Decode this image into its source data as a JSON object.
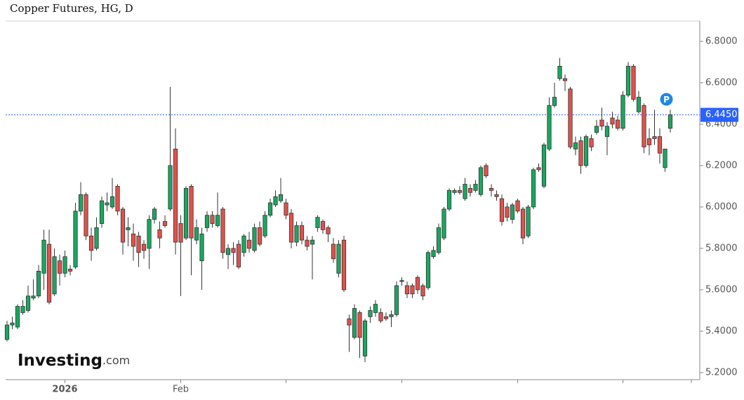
{
  "chart_data": {
    "type": "candlestick",
    "title": "Copper Futures, HG, D",
    "up_color": "#1aa760",
    "down_color": "#e0524d",
    "candles": [
      [
        5.36,
        5.45,
        5.35,
        5.43
      ],
      [
        5.43,
        5.47,
        5.41,
        5.44
      ],
      [
        5.42,
        5.53,
        5.41,
        5.52
      ],
      [
        5.49,
        5.55,
        5.48,
        5.52
      ],
      [
        5.5,
        5.62,
        5.49,
        5.57
      ],
      [
        5.56,
        5.65,
        5.55,
        5.57
      ],
      [
        5.57,
        5.72,
        5.56,
        5.69
      ],
      [
        5.68,
        5.89,
        5.6,
        5.84
      ],
      [
        5.82,
        5.89,
        5.53,
        5.54
      ],
      [
        5.58,
        5.8,
        5.57,
        5.76
      ],
      [
        5.74,
        5.77,
        5.62,
        5.68
      ],
      [
        5.68,
        5.79,
        5.66,
        5.76
      ],
      [
        5.7,
        5.72,
        5.67,
        5.69
      ],
      [
        5.71,
        6.02,
        5.7,
        5.98
      ],
      [
        5.98,
        6.12,
        5.96,
        6.06
      ],
      [
        6.06,
        6.07,
        5.84,
        5.86
      ],
      [
        5.86,
        5.9,
        5.74,
        5.79
      ],
      [
        5.8,
        5.95,
        5.79,
        5.9
      ],
      [
        5.92,
        6.05,
        5.9,
        6.03
      ],
      [
        6.01,
        6.07,
        5.98,
        6.02
      ],
      [
        6.0,
        6.14,
        5.99,
        6.05
      ],
      [
        6.1,
        6.11,
        5.96,
        5.98
      ],
      [
        5.99,
        6.0,
        5.77,
        5.83
      ],
      [
        5.89,
        5.95,
        5.81,
        5.9
      ],
      [
        5.87,
        5.92,
        5.74,
        5.81
      ],
      [
        5.86,
        5.88,
        5.71,
        5.78
      ],
      [
        5.82,
        5.84,
        5.75,
        5.79
      ],
      [
        5.8,
        5.96,
        5.7,
        5.94
      ],
      [
        5.94,
        6.0,
        5.92,
        5.99
      ],
      [
        5.89,
        5.93,
        5.8,
        5.85
      ],
      [
        5.93,
        5.96,
        5.9,
        5.91
      ],
      [
        5.99,
        6.58,
        5.98,
        6.2
      ],
      [
        6.28,
        6.38,
        5.77,
        5.83
      ],
      [
        5.92,
        5.96,
        5.57,
        5.83
      ],
      [
        5.85,
        6.1,
        5.84,
        6.09
      ],
      [
        6.1,
        6.11,
        5.67,
        5.85
      ],
      [
        5.84,
        5.94,
        5.82,
        5.9
      ],
      [
        5.74,
        5.9,
        5.6,
        5.87
      ],
      [
        5.9,
        5.98,
        5.88,
        5.96
      ],
      [
        5.96,
        5.98,
        5.9,
        5.92
      ],
      [
        5.91,
        6.07,
        5.9,
        5.96
      ],
      [
        5.99,
        6.0,
        5.75,
        5.78
      ],
      [
        5.77,
        5.82,
        5.7,
        5.8
      ],
      [
        5.8,
        5.83,
        5.72,
        5.78
      ],
      [
        5.82,
        5.84,
        5.7,
        5.71
      ],
      [
        5.78,
        5.87,
        5.76,
        5.86
      ],
      [
        5.84,
        5.88,
        5.78,
        5.8
      ],
      [
        5.79,
        5.92,
        5.78,
        5.9
      ],
      [
        5.9,
        5.93,
        5.81,
        5.82
      ],
      [
        5.86,
        5.98,
        5.85,
        5.96
      ],
      [
        5.96,
        6.04,
        5.95,
        6.02
      ],
      [
        6.01,
        6.08,
        6.0,
        6.05
      ],
      [
        6.03,
        6.14,
        6.02,
        6.06
      ],
      [
        6.02,
        6.04,
        5.94,
        5.96
      ],
      [
        5.97,
        5.99,
        5.8,
        5.83
      ],
      [
        5.83,
        5.93,
        5.81,
        5.91
      ],
      [
        5.91,
        5.93,
        5.82,
        5.84
      ],
      [
        5.84,
        5.86,
        5.79,
        5.81
      ],
      [
        5.82,
        5.86,
        5.65,
        5.84
      ],
      [
        5.9,
        5.96,
        5.88,
        5.95
      ],
      [
        5.93,
        5.94,
        5.87,
        5.89
      ],
      [
        5.9,
        5.91,
        5.83,
        5.87
      ],
      [
        5.82,
        5.85,
        5.73,
        5.75
      ],
      [
        5.68,
        5.84,
        5.66,
        5.82
      ],
      [
        5.84,
        5.86,
        5.59,
        5.6
      ],
      [
        5.46,
        5.48,
        5.3,
        5.43
      ],
      [
        5.37,
        5.53,
        5.36,
        5.51
      ],
      [
        5.49,
        5.5,
        5.27,
        5.37
      ],
      [
        5.28,
        5.46,
        5.25,
        5.45
      ],
      [
        5.47,
        5.52,
        5.44,
        5.5
      ],
      [
        5.49,
        5.55,
        5.47,
        5.53
      ],
      [
        5.49,
        5.51,
        5.44,
        5.45
      ],
      [
        5.47,
        5.49,
        5.45,
        5.46
      ],
      [
        5.47,
        5.5,
        5.42,
        5.48
      ],
      [
        5.48,
        5.64,
        5.47,
        5.62
      ],
      [
        5.64,
        5.66,
        5.62,
        5.645
      ],
      [
        5.62,
        5.64,
        5.56,
        5.58
      ],
      [
        5.62,
        5.63,
        5.56,
        5.58
      ],
      [
        5.66,
        5.67,
        5.58,
        5.6
      ],
      [
        5.62,
        5.63,
        5.55,
        5.57
      ],
      [
        5.61,
        5.79,
        5.6,
        5.78
      ],
      [
        5.76,
        5.81,
        5.75,
        5.79
      ],
      [
        5.78,
        5.92,
        5.77,
        5.9
      ],
      [
        5.85,
        6.0,
        5.84,
        5.99
      ],
      [
        5.99,
        6.09,
        5.98,
        6.08
      ],
      [
        6.07,
        6.09,
        6.06,
        6.08
      ],
      [
        6.08,
        6.1,
        6.06,
        6.07
      ],
      [
        6.04,
        6.14,
        6.03,
        6.11
      ],
      [
        6.09,
        6.11,
        6.05,
        6.07
      ],
      [
        6.08,
        6.13,
        6.07,
        6.11
      ],
      [
        6.06,
        6.2,
        6.05,
        6.19
      ],
      [
        6.2,
        6.21,
        6.14,
        6.15
      ],
      [
        6.09,
        6.11,
        6.05,
        6.08
      ],
      [
        6.06,
        6.08,
        6.03,
        6.05
      ],
      [
        6.04,
        6.06,
        5.91,
        5.93
      ],
      [
        6.0,
        6.02,
        5.93,
        5.95
      ],
      [
        5.94,
        6.02,
        5.92,
        6.01
      ],
      [
        6.03,
        6.04,
        5.97,
        5.98
      ],
      [
        5.99,
        6.0,
        5.82,
        5.85
      ],
      [
        5.86,
        6.01,
        5.85,
        6.0
      ],
      [
        6.0,
        6.19,
        5.99,
        6.18
      ],
      [
        6.19,
        6.21,
        6.17,
        6.18
      ],
      [
        6.1,
        6.31,
        6.09,
        6.3
      ],
      [
        6.28,
        6.53,
        6.27,
        6.49
      ],
      [
        6.49,
        6.6,
        6.48,
        6.53
      ],
      [
        6.62,
        6.72,
        6.61,
        6.68
      ],
      [
        6.62,
        6.64,
        6.56,
        6.61
      ],
      [
        6.57,
        6.58,
        6.28,
        6.29
      ],
      [
        6.28,
        6.34,
        6.25,
        6.31
      ],
      [
        6.32,
        6.34,
        6.16,
        6.2
      ],
      [
        6.2,
        6.35,
        6.19,
        6.34
      ],
      [
        6.33,
        6.35,
        6.27,
        6.29
      ],
      [
        6.36,
        6.42,
        6.35,
        6.39
      ],
      [
        6.42,
        6.48,
        6.37,
        6.39
      ],
      [
        6.34,
        6.41,
        6.25,
        6.39
      ],
      [
        6.43,
        6.46,
        6.38,
        6.4
      ],
      [
        6.42,
        6.44,
        6.37,
        6.38
      ],
      [
        6.38,
        6.56,
        6.37,
        6.54
      ],
      [
        6.54,
        6.7,
        6.53,
        6.68
      ],
      [
        6.68,
        6.69,
        6.51,
        6.52
      ],
      [
        6.46,
        6.56,
        6.45,
        6.53
      ],
      [
        6.49,
        6.5,
        6.26,
        6.29
      ],
      [
        6.33,
        6.38,
        6.25,
        6.3
      ],
      [
        6.34,
        6.47,
        6.3,
        6.33
      ],
      [
        6.34,
        6.38,
        6.21,
        6.26
      ],
      [
        6.19,
        6.28,
        6.17,
        6.28
      ],
      [
        6.38,
        6.47,
        6.36,
        6.445
      ]
    ],
    "xlim": [
      -0.27,
      131.6
    ],
    "xticks": [
      {
        "value": 11,
        "label": "2026"
      },
      {
        "value": 33,
        "label": "Feb"
      },
      53,
      75,
      97,
      117,
      130
    ],
    "ylim": [
      5.166,
      6.898
    ],
    "yticks": [
      {
        "value": 5.2,
        "label": "5.2000"
      },
      {
        "value": 5.4,
        "label": "5.4000"
      },
      {
        "value": 5.6,
        "label": "5.6000"
      },
      {
        "value": 5.8,
        "label": "5.8000"
      },
      {
        "value": 6,
        "label": "6.0000"
      },
      {
        "value": 6.2,
        "label": "6.2000"
      },
      {
        "value": 6.4,
        "label": "6.4000"
      },
      {
        "value": 6.6,
        "label": "6.6000"
      },
      {
        "value": 6.8,
        "label": "6.8000"
      }
    ],
    "last_price": {
      "value": 6.445,
      "label": "6.4450",
      "color": "#2962ff"
    },
    "marker": {
      "label": "P",
      "index": 125,
      "value": 6.52,
      "color": "#1e88e5"
    },
    "logo": {
      "name": "Investing",
      "suffix": ".com"
    }
  }
}
